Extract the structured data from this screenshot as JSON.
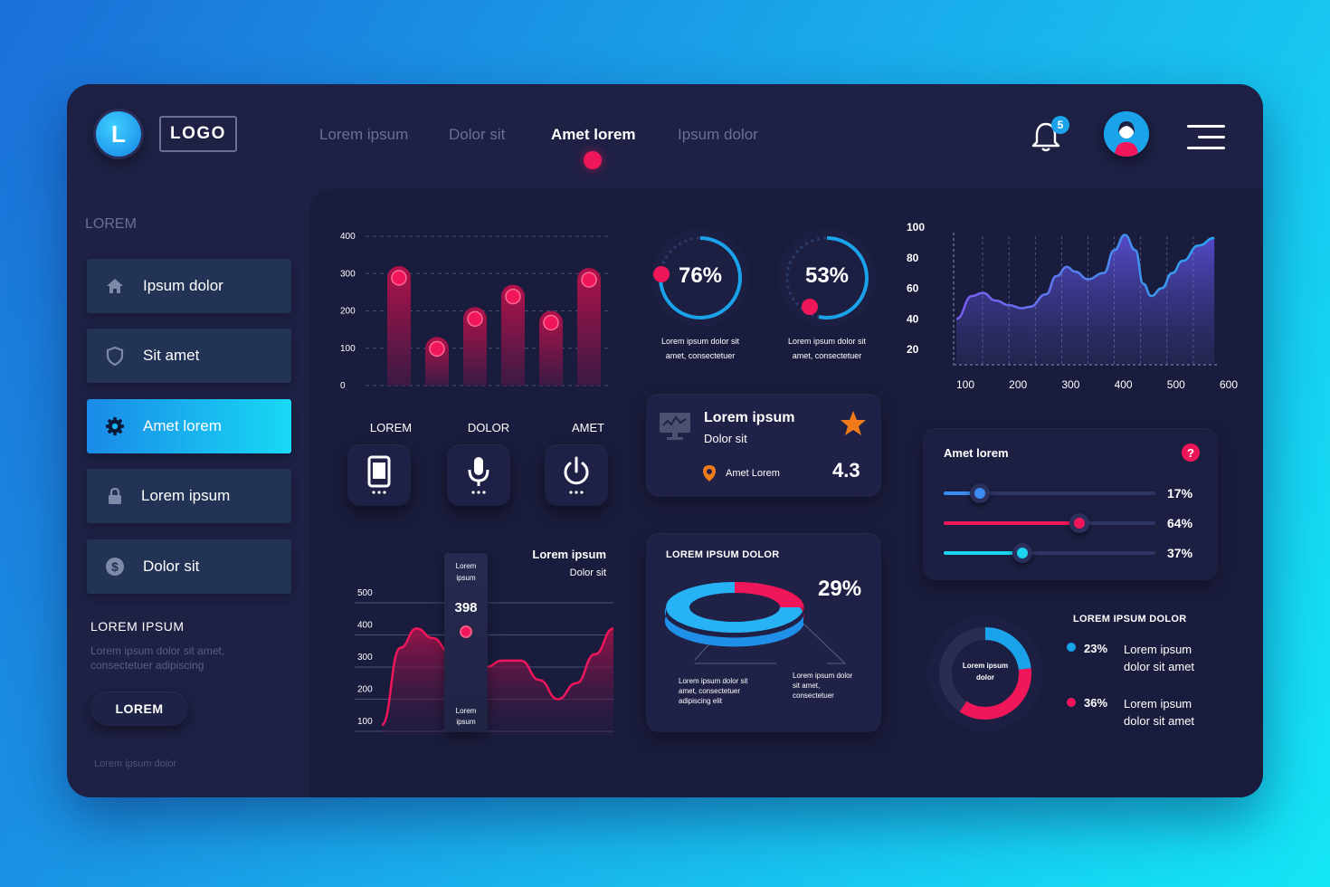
{
  "header": {
    "logo_letter": "L",
    "logo_text": "LOGO",
    "nav": [
      "Lorem ipsum",
      "Dolor sit",
      "Amet lorem",
      "Ipsum dolor"
    ],
    "active_nav": "Amet lorem",
    "notification_count": "5"
  },
  "sidebar": {
    "title": "LOREM",
    "items": [
      {
        "label": "Ipsum dolor",
        "icon": "home-icon"
      },
      {
        "label": "Sit amet",
        "icon": "shield-icon"
      },
      {
        "label": "Amet lorem",
        "icon": "gear-icon",
        "active": true
      },
      {
        "label": "Lorem ipsum",
        "icon": "lock-icon"
      },
      {
        "label": "Dolor sit",
        "icon": "dollar-icon"
      }
    ],
    "section_title": "LOREM IPSUM",
    "section_desc": "Lorem ipsum dolor sit amet, consectetuer adipiscing",
    "button": "LOREM",
    "footer": "Lorem ipsum dolor"
  },
  "bar_chart": {
    "type": "bar",
    "yticks": [
      "400",
      "300",
      "200",
      "100",
      "0"
    ],
    "ylim": [
      0,
      400
    ],
    "values": [
      320,
      130,
      210,
      270,
      200,
      315
    ]
  },
  "devices": {
    "labels": [
      "LOREM",
      "DOLOR",
      "AMET"
    ],
    "icons": [
      "phone-icon",
      "microphone-icon",
      "power-icon"
    ]
  },
  "gauges": [
    {
      "value": "76%",
      "caption1": "Lorem ipsum dolor sit",
      "caption2": "amet, consectetuer"
    },
    {
      "value": "53%",
      "caption1": "Lorem ipsum dolor sit",
      "caption2": "amet, consectetuer"
    }
  ],
  "rating": {
    "title": "Lorem ipsum",
    "subtitle": "Dolor sit",
    "location": "Amet Lorem",
    "score": "4.3"
  },
  "ring_card": {
    "title": "LOREM IPSUM DOLOR",
    "percent": "29%",
    "note_left": [
      "Lorem ipsum dolor sit",
      "amet, consectetuer",
      "adipiscing elit"
    ],
    "note_right": [
      "Lorem ipsum dolor",
      "sit amet,",
      "consectetuer"
    ]
  },
  "area_chart": {
    "type": "area",
    "xticks": [
      "100",
      "200",
      "300",
      "400",
      "500",
      "600"
    ],
    "yticks": [
      "100",
      "80",
      "60",
      "40",
      "20"
    ],
    "xlim": [
      100,
      600
    ],
    "ylim": [
      10,
      100
    ],
    "x": [
      100,
      130,
      150,
      175,
      200,
      225,
      240,
      270,
      290,
      310,
      325,
      350,
      380,
      400,
      420,
      440,
      455,
      470,
      490,
      510,
      530,
      560,
      590
    ],
    "values": [
      40,
      55,
      57,
      52,
      49,
      47,
      48,
      56,
      68,
      74,
      71,
      66,
      70,
      85,
      95,
      85,
      63,
      55,
      60,
      70,
      78,
      88,
      93
    ]
  },
  "sliders": {
    "title": "Amet lorem",
    "items": [
      {
        "value": 17,
        "label": "17%",
        "color": "#3a8cf0"
      },
      {
        "value": 64,
        "label": "64%",
        "color": "#f0165a"
      },
      {
        "value": 37,
        "label": "37%",
        "color": "#1ad4f0"
      }
    ]
  },
  "wave_chart": {
    "type": "line",
    "title": "Lorem ipsum",
    "subtitle": "Dolor sit",
    "yticks": [
      "500",
      "400",
      "300",
      "200",
      "100"
    ],
    "ylim": [
      100,
      500
    ],
    "x": [
      0,
      0.08,
      0.15,
      0.22,
      0.3,
      0.38,
      0.45,
      0.52,
      0.6,
      0.68,
      0.76,
      0.84,
      0.92,
      1
    ],
    "values": [
      120,
      360,
      420,
      390,
      340,
      290,
      300,
      320,
      320,
      260,
      200,
      250,
      340,
      420
    ],
    "tooltip_top": [
      "Lorem",
      "ipsum"
    ],
    "tooltip_value": "398",
    "tooltip_bottom": [
      "Lorem",
      "ipsum"
    ]
  },
  "donut": {
    "title": "LOREM IPSUM DOLOR",
    "center": [
      "Lorem ipsum",
      "dolor"
    ],
    "legend": [
      {
        "pct": "23%",
        "text1": "Lorem ipsum",
        "text2": "dolor sit amet",
        "color": "#1aa2ea"
      },
      {
        "pct": "36%",
        "text1": "Lorem ipsum",
        "text2": "dolor sit amet",
        "color": "#f0165a"
      }
    ]
  }
}
